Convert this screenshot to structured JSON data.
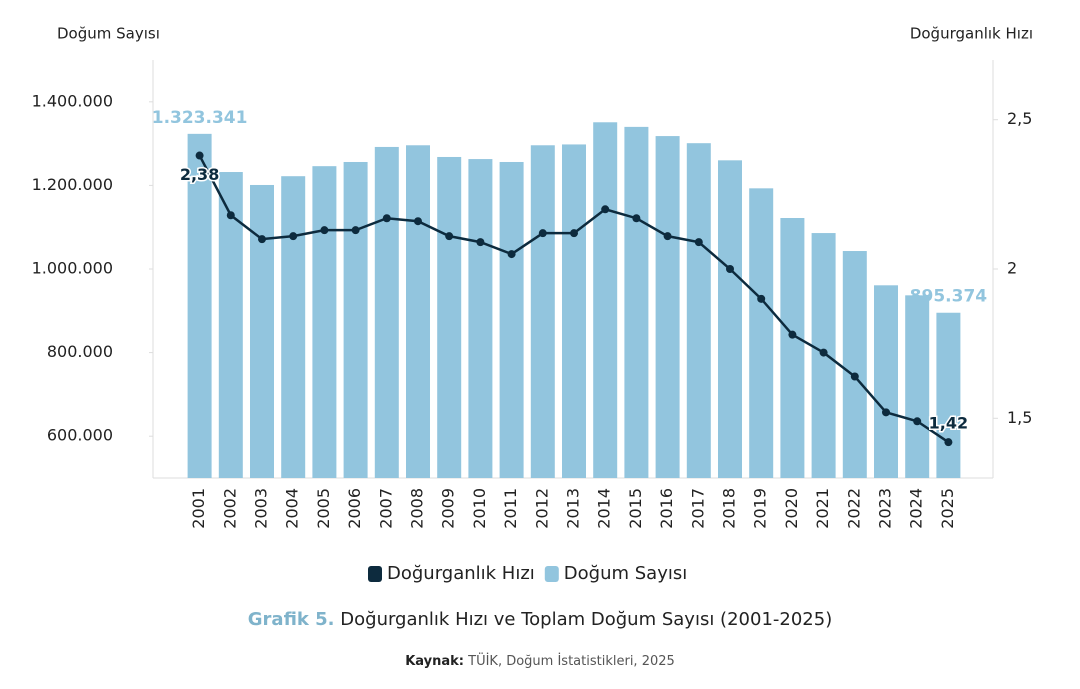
{
  "chart_data": {
    "type": "bar-line",
    "ylabel": "Doğum Sayısı",
    "y2label": "Doğurganlık Hızı",
    "categories": [
      "2001",
      "2002",
      "2003",
      "2004",
      "2005",
      "2006",
      "2007",
      "2008",
      "2009",
      "2010",
      "2011",
      "2012",
      "2013",
      "2014",
      "2015",
      "2016",
      "2017",
      "2018",
      "2019",
      "2020",
      "2021",
      "2022",
      "2023",
      "2024",
      "2025"
    ],
    "series": [
      {
        "name": "Doğurganlık Hızı",
        "type": "line",
        "axis": "y2",
        "color": "#0d2b3e",
        "values": [
          2.38,
          2.18,
          2.1,
          2.11,
          2.13,
          2.13,
          2.17,
          2.16,
          2.11,
          2.09,
          2.05,
          2.12,
          2.12,
          2.2,
          2.17,
          2.11,
          2.09,
          2.0,
          1.9,
          1.78,
          1.72,
          1.64,
          1.52,
          1.49,
          1.42
        ],
        "value_labels": [
          "2,38",
          null,
          null,
          null,
          null,
          null,
          null,
          null,
          null,
          null,
          null,
          null,
          null,
          null,
          null,
          null,
          null,
          null,
          null,
          null,
          null,
          null,
          null,
          null,
          "1,42"
        ]
      },
      {
        "name": "Doğum Sayısı",
        "type": "bar",
        "axis": "y",
        "color": "#92c5de",
        "values": [
          1323341,
          1232000,
          1201000,
          1222000,
          1246000,
          1256000,
          1292000,
          1296000,
          1268000,
          1263000,
          1256000,
          1296000,
          1298000,
          1351000,
          1340000,
          1318000,
          1301000,
          1260000,
          1193000,
          1122000,
          1086000,
          1043000,
          961000,
          937000,
          895374
        ],
        "value_labels": [
          "1.323.341",
          null,
          null,
          null,
          null,
          null,
          null,
          null,
          null,
          null,
          null,
          null,
          null,
          null,
          null,
          null,
          null,
          null,
          null,
          null,
          null,
          null,
          null,
          null,
          "895.374"
        ]
      }
    ],
    "ylim": [
      500000,
      1500000
    ],
    "yticks": [
      {
        "value": 600000,
        "label": "600.000"
      },
      {
        "value": 800000,
        "label": "800.000"
      },
      {
        "value": 1000000,
        "label": "1.000.000"
      },
      {
        "value": 1200000,
        "label": "1.200.000"
      },
      {
        "value": 1400000,
        "label": "1.400.000"
      }
    ],
    "y2lim": [
      1.3,
      2.7
    ],
    "y2ticks": [
      {
        "value": 1.5,
        "label": "1,5"
      },
      2,
      {
        "value": 2.5,
        "label": "2,5"
      }
    ],
    "legend": "bottom"
  },
  "caption": {
    "label": "Grafik 5.",
    "text": "Doğurganlık Hızı ve Toplam Doğum Sayısı (2001-2025)"
  },
  "source": {
    "label": "Kaynak:",
    "text": "TÜİK, Doğum İstatistikleri, 2025"
  }
}
